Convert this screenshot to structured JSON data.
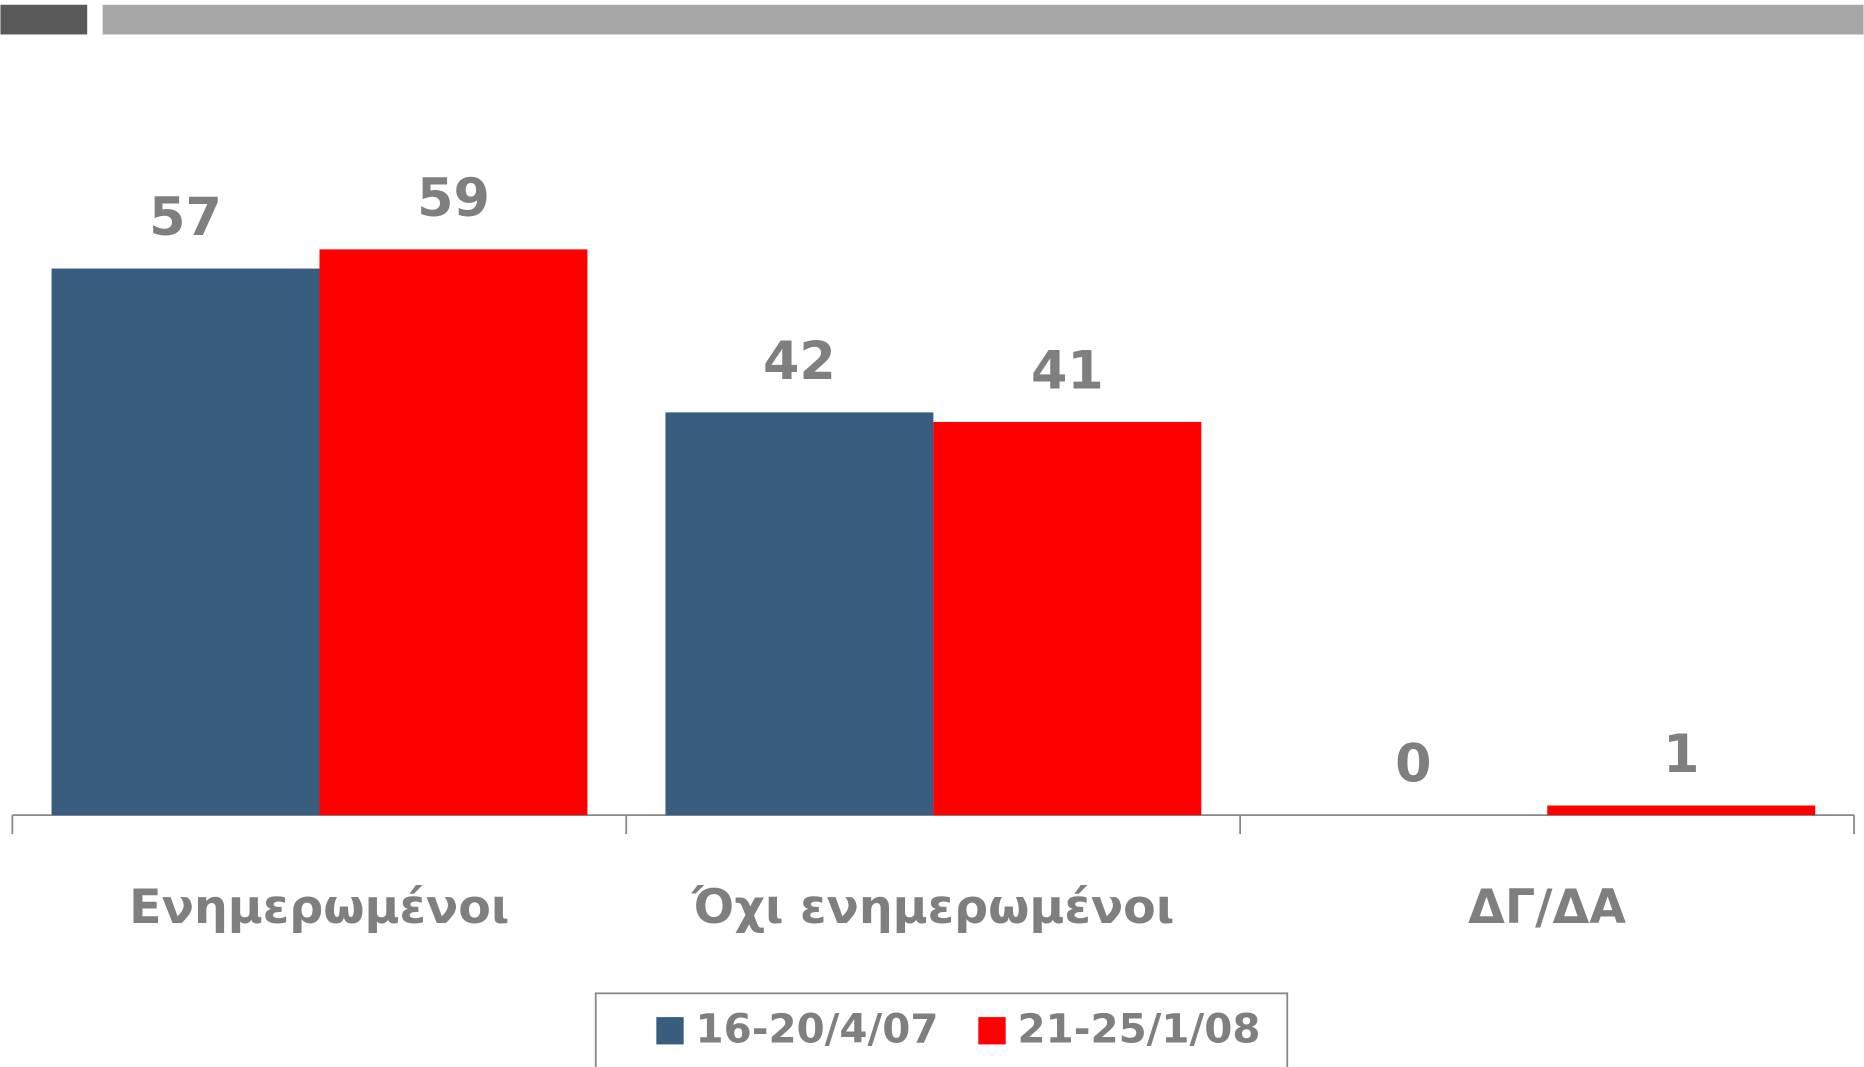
{
  "chart_data": {
    "type": "bar",
    "categories": [
      "Ενημερωμένοι",
      "Όχι ενημερωμένοι",
      "ΔΓ/ΔΑ"
    ],
    "series": [
      {
        "name": "16-20/4/07",
        "color": "#385d7e",
        "values": [
          57,
          42,
          0
        ]
      },
      {
        "name": "21-25/1/08",
        "color": "#ff0000",
        "values": [
          59,
          41,
          1
        ]
      }
    ],
    "legend": "bottom"
  }
}
